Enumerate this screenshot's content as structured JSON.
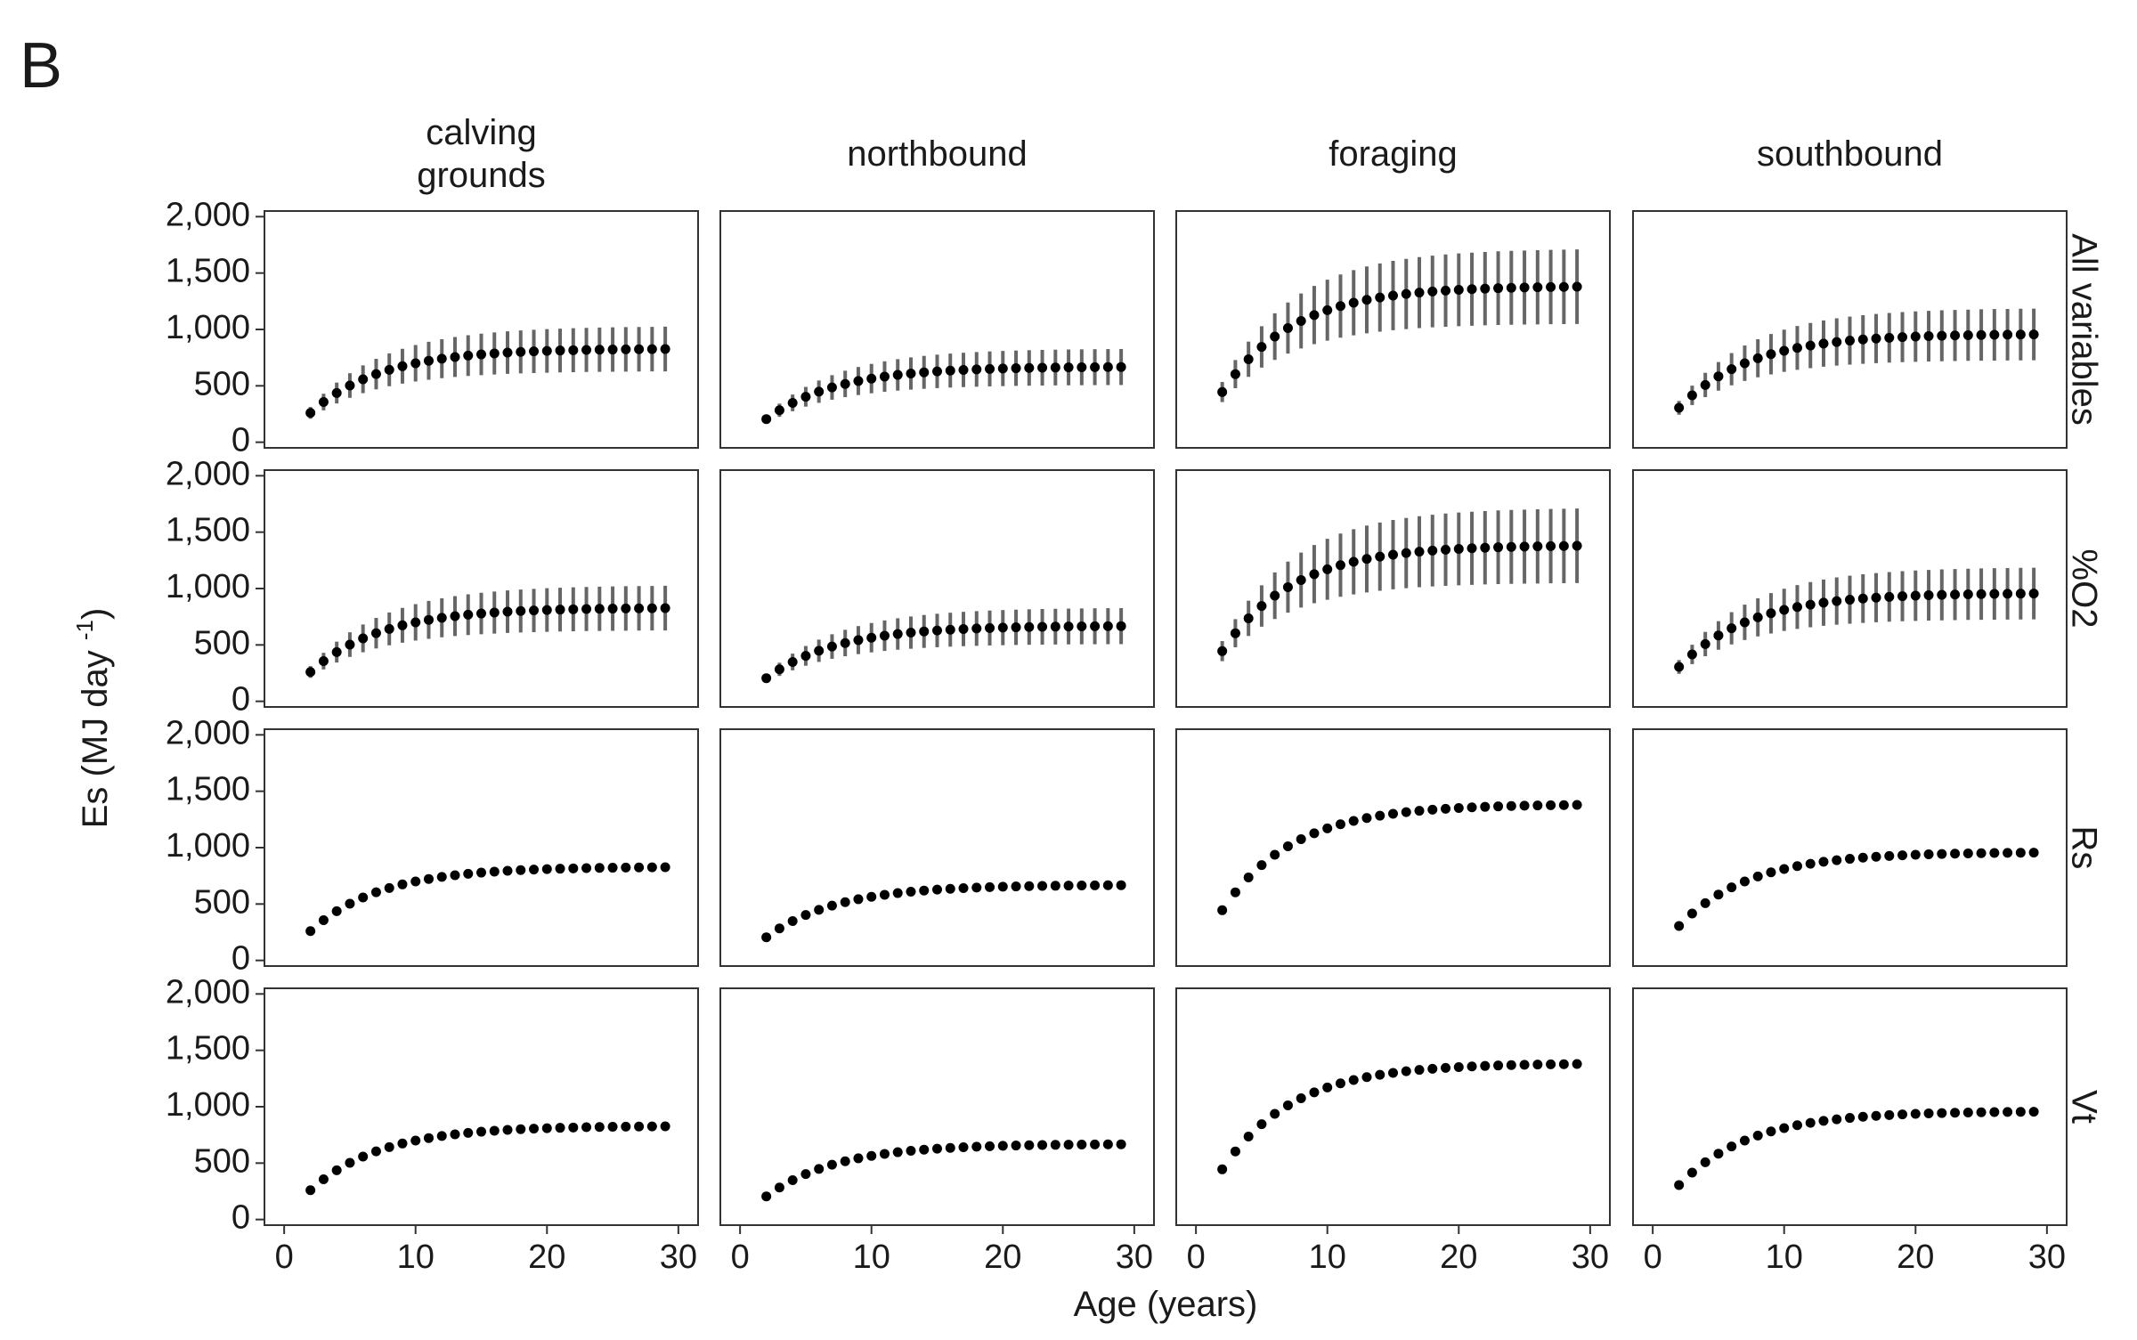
{
  "figure_label": "B",
  "chart_data": {
    "type": "scatter",
    "layout": "facet grid (4 rows x 4 columns)",
    "xlabel": "Age (years)",
    "ylabel": "Es (MJ day",
    "ylabel_superscript": "-1",
    "ylabel_close": ")",
    "column_labels": [
      "calving\ngrounds",
      "northbound",
      "foraging",
      "southbound"
    ],
    "row_labels": [
      "All variables",
      "%O2",
      "Rs",
      "Vt"
    ],
    "x_ticks": [
      "0",
      "10",
      "20",
      "30"
    ],
    "x_tick_values": [
      0,
      10,
      20,
      30
    ],
    "y_ticks": [
      "0",
      "500",
      "1,000",
      "1,500",
      "2,000"
    ],
    "y_tick_values": [
      0,
      500,
      1000,
      1500,
      2000
    ],
    "xlim": [
      -1.5,
      31.5
    ],
    "ylim": [
      -50,
      2050
    ],
    "grid": false,
    "legend": "none",
    "point_color": "#000000",
    "errorbar_color": "#666666",
    "age_start": 2,
    "age_end": 29,
    "series_by_column": [
      {
        "column": "calving grounds",
        "start": 260,
        "asymptote": 830
      },
      {
        "column": "northbound",
        "start": 205,
        "asymptote": 670
      },
      {
        "column": "foraging",
        "start": 445,
        "asymptote": 1385
      },
      {
        "column": "southbound",
        "start": 305,
        "asymptote": 960
      }
    ],
    "growth_rate": 0.185,
    "error_bars": {
      "All variables": {
        "relative_halfwidth_start": 0.2,
        "relative_halfwidth_end": 0.24
      },
      "%O2": {
        "relative_halfwidth_start": 0.2,
        "relative_halfwidth_end": 0.24
      },
      "Rs": null,
      "Vt": null
    }
  }
}
